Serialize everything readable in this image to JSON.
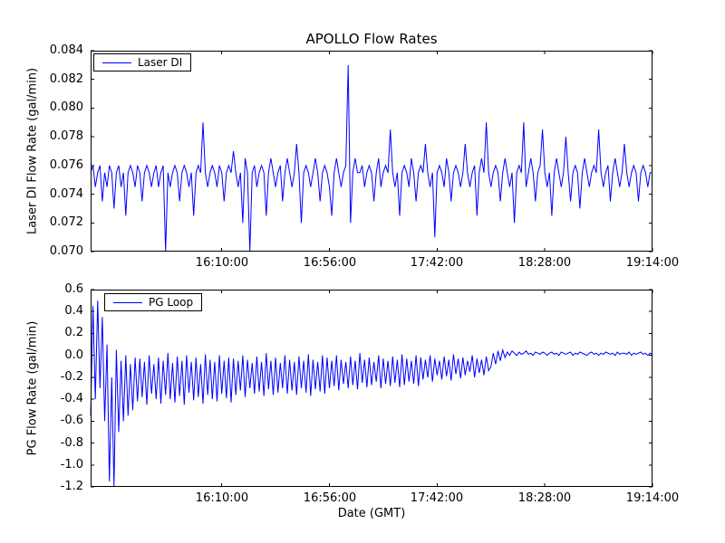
{
  "figure": {
    "title": "APOLLO Flow Rates",
    "xlabel": "Date (GMT)",
    "background_color": "#ffffff",
    "line_color": "#0000ff"
  },
  "chart_data": [
    {
      "type": "line",
      "title": "APOLLO Flow Rates",
      "ylabel": "Laser DI Flow Rate (gal/min)",
      "xlabel": "",
      "grid": false,
      "line_color": "#0000ff",
      "legend": {
        "label": "Laser DI",
        "position": "upper-left"
      },
      "ylim": [
        0.07,
        0.084
      ],
      "x_range_minutes": [
        0,
        240
      ],
      "xticks": [
        {
          "pos": 56,
          "label": "16:10:00"
        },
        {
          "pos": 102,
          "label": "16:56:00"
        },
        {
          "pos": 148,
          "label": "17:42:00"
        },
        {
          "pos": 194,
          "label": "18:28:00"
        },
        {
          "pos": 240,
          "label": "19:14:00"
        }
      ],
      "yticks": [
        {
          "pos": 0.084,
          "label": "0.084"
        },
        {
          "pos": 0.082,
          "label": "0.082"
        },
        {
          "pos": 0.08,
          "label": "0.080"
        },
        {
          "pos": 0.078,
          "label": "0.078"
        },
        {
          "pos": 0.076,
          "label": "0.076"
        },
        {
          "pos": 0.074,
          "label": "0.074"
        },
        {
          "pos": 0.072,
          "label": "0.072"
        },
        {
          "pos": 0.07,
          "label": "0.070"
        }
      ],
      "series": [
        {
          "name": "Laser DI",
          "values": [
            0.0755,
            0.076,
            0.0745,
            0.0755,
            0.076,
            0.0735,
            0.0755,
            0.0745,
            0.076,
            0.0755,
            0.073,
            0.0755,
            0.076,
            0.0745,
            0.0755,
            0.0725,
            0.0755,
            0.076,
            0.0755,
            0.0745,
            0.076,
            0.0755,
            0.0735,
            0.0755,
            0.076,
            0.0755,
            0.0745,
            0.0755,
            0.076,
            0.0745,
            0.0755,
            0.076,
            0.07,
            0.0755,
            0.0745,
            0.0755,
            0.076,
            0.0755,
            0.0735,
            0.0755,
            0.076,
            0.0755,
            0.0745,
            0.0755,
            0.0725,
            0.0755,
            0.076,
            0.0755,
            0.079,
            0.0755,
            0.0745,
            0.0755,
            0.076,
            0.0755,
            0.0745,
            0.076,
            0.0755,
            0.0735,
            0.0755,
            0.076,
            0.0755,
            0.077,
            0.0755,
            0.0745,
            0.0755,
            0.072,
            0.0765,
            0.0755,
            0.07,
            0.0755,
            0.076,
            0.0745,
            0.0755,
            0.076,
            0.0755,
            0.0725,
            0.0755,
            0.0765,
            0.0755,
            0.0745,
            0.0755,
            0.076,
            0.0735,
            0.0755,
            0.0765,
            0.0755,
            0.0745,
            0.0755,
            0.0775,
            0.0755,
            0.072,
            0.0755,
            0.076,
            0.0755,
            0.0745,
            0.0755,
            0.0765,
            0.0755,
            0.0735,
            0.0755,
            0.076,
            0.0755,
            0.0745,
            0.0725,
            0.0755,
            0.0765,
            0.0755,
            0.0745,
            0.0755,
            0.076,
            0.083,
            0.072,
            0.0755,
            0.0765,
            0.0755,
            0.0755,
            0.076,
            0.0745,
            0.0755,
            0.076,
            0.0755,
            0.0735,
            0.0755,
            0.0765,
            0.0745,
            0.0755,
            0.076,
            0.0755,
            0.0785,
            0.0755,
            0.0745,
            0.0755,
            0.0725,
            0.0755,
            0.076,
            0.0755,
            0.0745,
            0.0765,
            0.0755,
            0.0735,
            0.0755,
            0.076,
            0.0755,
            0.0775,
            0.0755,
            0.0745,
            0.0755,
            0.071,
            0.0755,
            0.076,
            0.0755,
            0.0745,
            0.0765,
            0.0755,
            0.0735,
            0.0755,
            0.076,
            0.0755,
            0.0745,
            0.0755,
            0.0775,
            0.0755,
            0.0745,
            0.0755,
            0.076,
            0.0725,
            0.0755,
            0.0765,
            0.0755,
            0.079,
            0.0755,
            0.0745,
            0.0755,
            0.076,
            0.0755,
            0.0735,
            0.0755,
            0.0765,
            0.0755,
            0.0745,
            0.0755,
            0.072,
            0.0755,
            0.076,
            0.0755,
            0.079,
            0.0745,
            0.0755,
            0.0765,
            0.0755,
            0.0735,
            0.0755,
            0.076,
            0.0785,
            0.0755,
            0.0745,
            0.0755,
            0.0725,
            0.0755,
            0.0765,
            0.0755,
            0.0745,
            0.0755,
            0.078,
            0.0755,
            0.0735,
            0.0755,
            0.076,
            0.0755,
            0.073,
            0.0755,
            0.0765,
            0.0755,
            0.0745,
            0.0755,
            0.076,
            0.0755,
            0.0785,
            0.0755,
            0.0745,
            0.0755,
            0.076,
            0.0735,
            0.0755,
            0.0765,
            0.0755,
            0.0745,
            0.0755,
            0.0775,
            0.0755,
            0.0745,
            0.0755,
            0.076,
            0.0755,
            0.0735,
            0.0755,
            0.076,
            0.0755,
            0.0745,
            0.0755,
            0.0755
          ]
        }
      ]
    },
    {
      "type": "line",
      "title": "",
      "ylabel": "PG Flow Rate (gal/min)",
      "xlabel": "Date (GMT)",
      "grid": false,
      "line_color": "#0000ff",
      "legend": {
        "label": "PG Loop",
        "position": "upper-left"
      },
      "ylim": [
        -1.2,
        0.6
      ],
      "x_range_minutes": [
        0,
        240
      ],
      "xticks": [
        {
          "pos": 56,
          "label": "16:10:00"
        },
        {
          "pos": 102,
          "label": "16:56:00"
        },
        {
          "pos": 148,
          "label": "17:42:00"
        },
        {
          "pos": 194,
          "label": "18:28:00"
        },
        {
          "pos": 240,
          "label": "19:14:00"
        }
      ],
      "yticks": [
        {
          "pos": 0.6,
          "label": "0.6"
        },
        {
          "pos": 0.4,
          "label": "0.4"
        },
        {
          "pos": 0.2,
          "label": "0.2"
        },
        {
          "pos": 0.0,
          "label": "0.0"
        },
        {
          "pos": -0.2,
          "label": "-0.2"
        },
        {
          "pos": -0.4,
          "label": "-0.4"
        },
        {
          "pos": -0.6,
          "label": "-0.6"
        },
        {
          "pos": -0.8,
          "label": "-0.8"
        },
        {
          "pos": -1.0,
          "label": "-1.0"
        },
        {
          "pos": -1.2,
          "label": "-1.2"
        }
      ],
      "series": [
        {
          "name": "PG Loop",
          "values": [
            -0.55,
            0.45,
            -0.4,
            0.5,
            -0.3,
            0.35,
            -0.6,
            0.1,
            -1.15,
            -0.2,
            -1.2,
            0.05,
            -0.7,
            -0.05,
            -0.6,
            0.0,
            -0.55,
            -0.08,
            -0.5,
            -0.02,
            -0.42,
            -0.03,
            -0.38,
            -0.06,
            -0.45,
            0.0,
            -0.35,
            -0.08,
            -0.4,
            -0.02,
            -0.44,
            -0.05,
            -0.36,
            0.02,
            -0.4,
            -0.07,
            -0.43,
            -0.01,
            -0.37,
            -0.05,
            -0.45,
            0.0,
            -0.34,
            -0.06,
            -0.41,
            -0.02,
            -0.38,
            -0.08,
            -0.44,
            0.01,
            -0.36,
            -0.04,
            -0.4,
            -0.06,
            -0.42,
            0.0,
            -0.35,
            -0.05,
            -0.39,
            -0.02,
            -0.43,
            -0.03,
            -0.36,
            -0.05,
            -0.32,
            0.0,
            -0.38,
            -0.04,
            -0.3,
            -0.07,
            -0.35,
            -0.01,
            -0.33,
            -0.06,
            -0.37,
            0.02,
            -0.31,
            -0.05,
            -0.36,
            -0.02,
            -0.34,
            -0.07,
            -0.3,
            0.0,
            -0.35,
            -0.04,
            -0.32,
            -0.06,
            -0.36,
            -0.01,
            -0.3,
            -0.05,
            -0.34,
            0.01,
            -0.37,
            -0.04,
            -0.31,
            -0.06,
            -0.33,
            0.0,
            -0.35,
            -0.02,
            -0.3,
            -0.05,
            -0.28,
            0.0,
            -0.32,
            -0.04,
            -0.26,
            -0.06,
            -0.3,
            -0.01,
            -0.27,
            -0.05,
            -0.31,
            0.02,
            -0.25,
            -0.04,
            -0.29,
            -0.02,
            -0.27,
            -0.06,
            -0.24,
            0.0,
            -0.3,
            -0.03,
            -0.26,
            -0.05,
            -0.28,
            -0.01,
            -0.25,
            -0.04,
            -0.29,
            0.01,
            -0.27,
            -0.03,
            -0.24,
            -0.05,
            -0.26,
            0.0,
            -0.28,
            -0.02,
            -0.22,
            -0.04,
            -0.2,
            0.0,
            -0.24,
            -0.03,
            -0.18,
            -0.05,
            -0.22,
            -0.01,
            -0.19,
            -0.04,
            -0.23,
            0.01,
            -0.17,
            -0.03,
            -0.21,
            -0.02,
            -0.18,
            -0.05,
            -0.15,
            0.0,
            -0.2,
            -0.03,
            -0.16,
            -0.04,
            -0.18,
            -0.01,
            -0.14,
            -0.1,
            0.02,
            -0.08,
            0.04,
            -0.05,
            0.05,
            -0.02,
            0.03,
            0.0,
            0.04,
            0.02,
            0.0,
            0.03,
            0.01,
            0.02,
            0.04,
            0.01,
            0.02,
            0.0,
            0.03,
            0.02,
            0.01,
            0.03,
            0.02,
            0.0,
            0.02,
            0.03,
            0.01,
            0.02,
            0.0,
            0.03,
            0.02,
            0.01,
            0.02,
            0.03,
            0.0,
            0.02,
            0.01,
            0.03,
            0.02,
            0.01,
            0.0,
            0.02,
            0.03,
            0.01,
            0.02,
            0.0,
            0.02,
            0.01,
            0.03,
            0.02,
            0.01,
            0.02,
            0.0,
            0.03,
            0.01,
            0.02,
            0.02,
            0.01,
            0.03,
            0.0,
            0.02,
            0.01,
            0.02,
            0.03,
            0.01,
            0.02,
            0.0,
            0.02,
            0.01
          ]
        }
      ]
    }
  ]
}
